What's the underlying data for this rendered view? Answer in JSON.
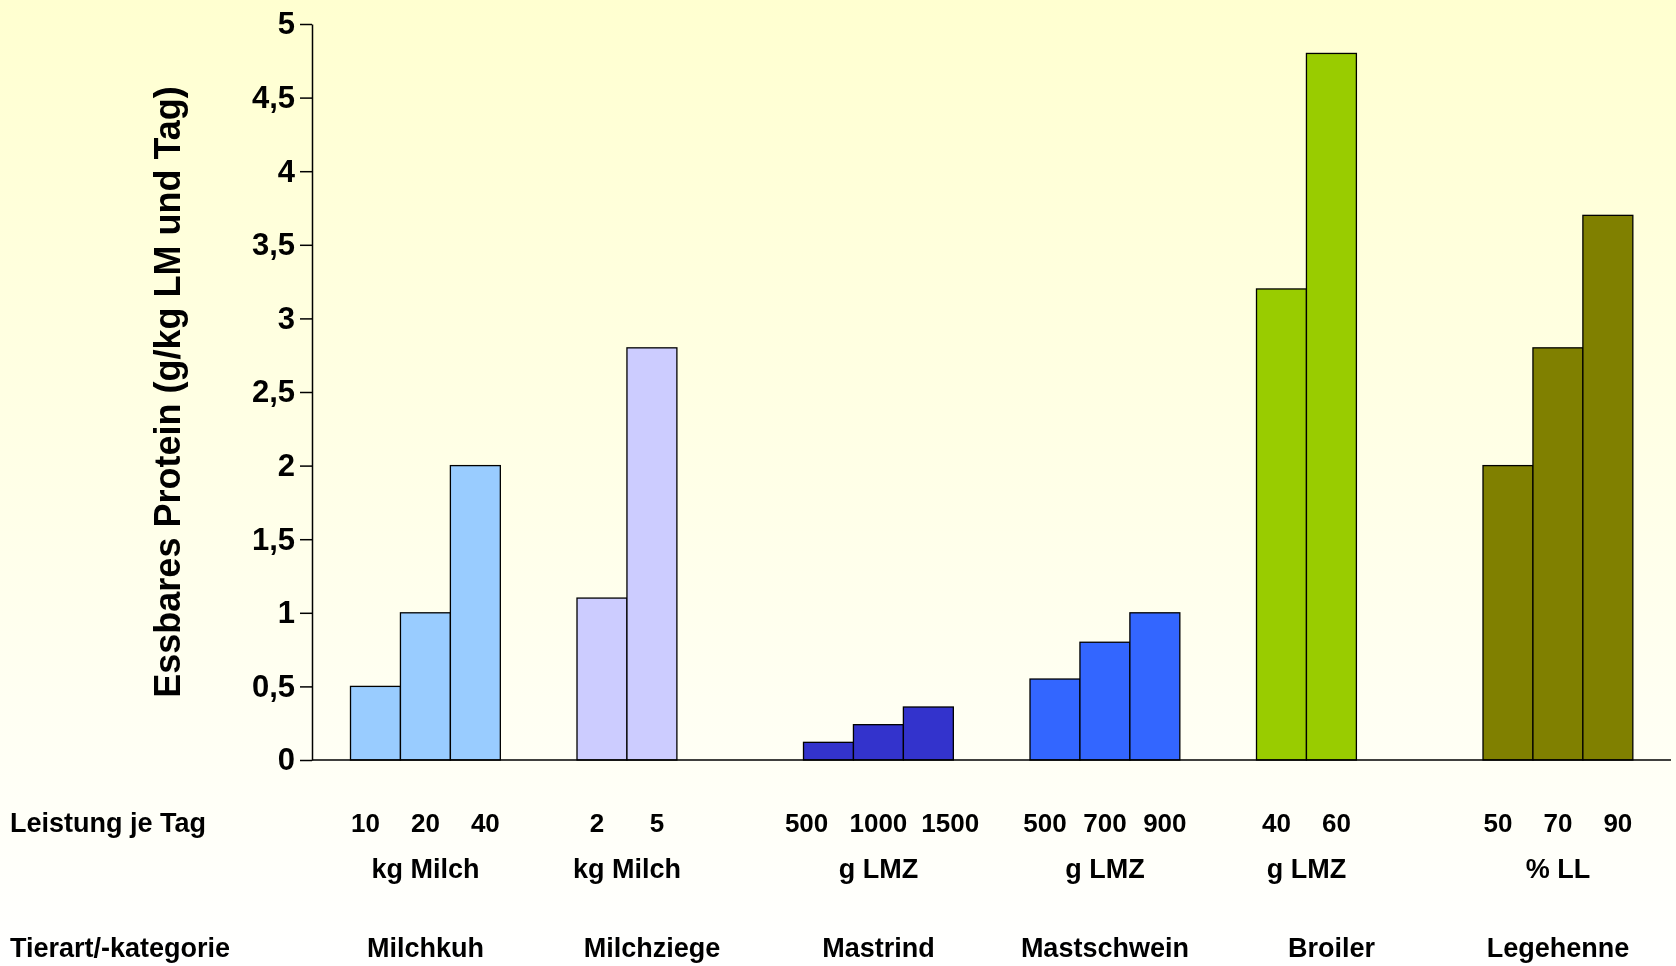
{
  "chart_data": {
    "type": "bar",
    "ylabel": "Essbares Protein (g/kg LM und Tag)",
    "categories": [
      "Milchkuh",
      "Milchziege",
      "Mastrind",
      "Mastschwein",
      "Broiler",
      "Legehenne"
    ],
    "series": [
      {
        "colors": [
          "#99ccff",
          "#ccccff",
          "#3333cc",
          "#3366ff",
          "#99cc00",
          "#808000"
        ],
        "values": [
          0.5,
          1.1,
          0.12,
          0.55,
          3.2,
          2.0
        ]
      },
      {
        "colors": [
          "#99ccff",
          "#ccccff",
          "#3333cc",
          "#3366ff",
          "#99cc00",
          "#808000"
        ],
        "values": [
          1.0,
          2.8,
          0.24,
          0.8,
          4.8,
          2.8
        ]
      },
      {
        "colors": [
          "#99ccff",
          null,
          "#3333cc",
          "#3366ff",
          null,
          "#808000"
        ],
        "values": [
          2.0,
          null,
          0.36,
          1.0,
          null,
          3.7
        ]
      }
    ],
    "ylim": [
      0,
      5
    ],
    "yticks": [
      0,
      {
        "value": 0.5,
        "label": "0,5"
      },
      1,
      {
        "value": 1.5,
        "label": "1,5"
      },
      2,
      {
        "value": 2.5,
        "label": "2,5"
      },
      3,
      {
        "value": 3.5,
        "label": "3,5"
      },
      4,
      {
        "value": 4.5,
        "label": "4,5"
      },
      5
    ],
    "grid": false,
    "annotations": [
      "Leistung je Tag",
      "Tierart/-kategorie",
      "10",
      "20",
      "40",
      "kg Milch",
      "2",
      "5",
      "kg Milch",
      "500",
      "1000",
      "1500",
      "g LMZ",
      "500",
      "700",
      "900",
      "g LMZ",
      "40",
      "60",
      "g LMZ",
      "50",
      "70",
      "90",
      "% LL"
    ]
  }
}
